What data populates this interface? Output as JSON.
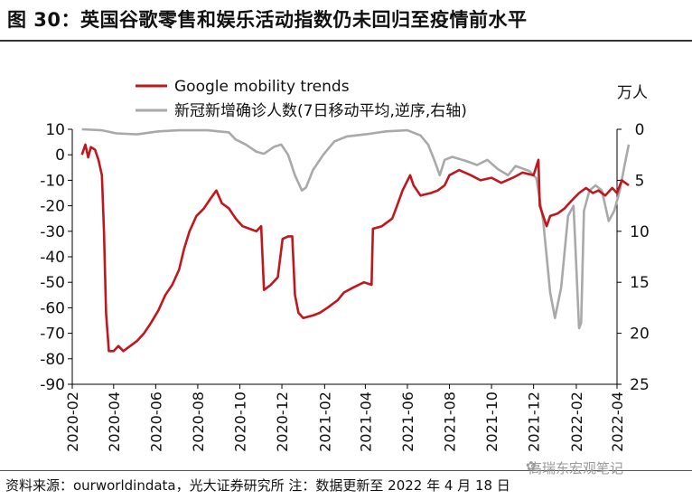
{
  "title": "图 30：英国谷歌零售和娱乐活动指数仍未回归至疫情前水平",
  "source": "资料来源：ourworldindata，光大证券研究所  注：数据更新至 2022 年 4 月 18 日",
  "watermark": "高瑞东宏观笔记",
  "colors": {
    "google": "#c0161c",
    "cases": "#a9a9a9",
    "axis": "#000000"
  },
  "chart_data": {
    "type": "line",
    "title": "",
    "x_tick_labels": [
      "2020-02",
      "2020-04",
      "2020-06",
      "2020-08",
      "2020-10",
      "2020-12",
      "2021-02",
      "2021-04",
      "2021-06",
      "2021-08",
      "2021-10",
      "2021-12",
      "2022-02",
      "2022-04"
    ],
    "y_left": {
      "ylim": [
        -90,
        10
      ],
      "ticks": [
        10,
        0,
        -10,
        -20,
        -30,
        -40,
        -50,
        -60,
        -70,
        -80,
        -90
      ]
    },
    "y_right": {
      "label": "万人",
      "ylim": [
        0,
        25
      ],
      "inverted": true,
      "ticks": [
        0,
        5,
        10,
        15,
        20,
        25
      ]
    },
    "legend_position": "top-center",
    "series": [
      {
        "name": "Google mobility trends",
        "axis": "left",
        "color": "#c0161c",
        "points": [
          [
            "2020-02-15",
            0
          ],
          [
            "2020-02-20",
            4
          ],
          [
            "2020-02-24",
            -1
          ],
          [
            "2020-02-28",
            3
          ],
          [
            "2020-03-05",
            2
          ],
          [
            "2020-03-10",
            -2
          ],
          [
            "2020-03-15",
            -8
          ],
          [
            "2020-03-18",
            -30
          ],
          [
            "2020-03-21",
            -62
          ],
          [
            "2020-03-25",
            -77
          ],
          [
            "2020-04-01",
            -77
          ],
          [
            "2020-04-08",
            -75
          ],
          [
            "2020-04-15",
            -77
          ],
          [
            "2020-04-25",
            -75
          ],
          [
            "2020-05-05",
            -73
          ],
          [
            "2020-05-15",
            -70
          ],
          [
            "2020-05-25",
            -66
          ],
          [
            "2020-06-05",
            -61
          ],
          [
            "2020-06-15",
            -55
          ],
          [
            "2020-06-25",
            -51
          ],
          [
            "2020-07-05",
            -45
          ],
          [
            "2020-07-12",
            -37
          ],
          [
            "2020-07-20",
            -30
          ],
          [
            "2020-07-30",
            -24
          ],
          [
            "2020-08-10",
            -21
          ],
          [
            "2020-08-20",
            -17
          ],
          [
            "2020-08-28",
            -14
          ],
          [
            "2020-09-05",
            -19
          ],
          [
            "2020-09-15",
            -21
          ],
          [
            "2020-09-25",
            -25
          ],
          [
            "2020-10-05",
            -28
          ],
          [
            "2020-10-15",
            -29
          ],
          [
            "2020-10-25",
            -30
          ],
          [
            "2020-11-01",
            -28
          ],
          [
            "2020-11-05",
            -53
          ],
          [
            "2020-11-15",
            -51
          ],
          [
            "2020-11-25",
            -48
          ],
          [
            "2020-12-02",
            -33
          ],
          [
            "2020-12-10",
            -32
          ],
          [
            "2020-12-16",
            -32
          ],
          [
            "2020-12-20",
            -55
          ],
          [
            "2020-12-25",
            -62
          ],
          [
            "2021-01-01",
            -64
          ],
          [
            "2021-01-15",
            -63
          ],
          [
            "2021-01-25",
            -62
          ],
          [
            "2021-02-05",
            -60
          ],
          [
            "2021-02-20",
            -57
          ],
          [
            "2021-03-01",
            -54
          ],
          [
            "2021-03-15",
            -52
          ],
          [
            "2021-03-30",
            -50
          ],
          [
            "2021-04-10",
            -51
          ],
          [
            "2021-04-12",
            -29
          ],
          [
            "2021-04-25",
            -28
          ],
          [
            "2021-05-10",
            -25
          ],
          [
            "2021-05-17",
            -20
          ],
          [
            "2021-05-25",
            -14
          ],
          [
            "2021-06-05",
            -8
          ],
          [
            "2021-06-10",
            -12
          ],
          [
            "2021-06-20",
            -16
          ],
          [
            "2021-07-05",
            -15
          ],
          [
            "2021-07-15",
            -14
          ],
          [
            "2021-07-25",
            -12
          ],
          [
            "2021-08-01",
            -8
          ],
          [
            "2021-08-15",
            -6
          ],
          [
            "2021-09-01",
            -8
          ],
          [
            "2021-09-15",
            -10
          ],
          [
            "2021-10-01",
            -9
          ],
          [
            "2021-10-15",
            -11
          ],
          [
            "2021-11-01",
            -9
          ],
          [
            "2021-11-15",
            -7
          ],
          [
            "2021-12-01",
            -8
          ],
          [
            "2021-12-08",
            -2
          ],
          [
            "2021-12-10",
            -20
          ],
          [
            "2021-12-20",
            -28
          ],
          [
            "2021-12-25",
            -24
          ],
          [
            "2022-01-05",
            -23
          ],
          [
            "2022-01-15",
            -21
          ],
          [
            "2022-01-25",
            -18
          ],
          [
            "2022-02-05",
            -15
          ],
          [
            "2022-02-15",
            -13
          ],
          [
            "2022-02-25",
            -15
          ],
          [
            "2022-03-05",
            -14
          ],
          [
            "2022-03-15",
            -16
          ],
          [
            "2022-03-25",
            -13
          ],
          [
            "2022-04-01",
            -15
          ],
          [
            "2022-04-08",
            -10
          ],
          [
            "2022-04-18",
            -12
          ]
        ]
      },
      {
        "name": "新冠新增确诊人数(7日移动平均,逆序,右轴)",
        "axis": "right",
        "color": "#a9a9a9",
        "points": [
          [
            "2020-02-15",
            0
          ],
          [
            "2020-03-15",
            0.1
          ],
          [
            "2020-04-05",
            0.4
          ],
          [
            "2020-05-05",
            0.5
          ],
          [
            "2020-06-05",
            0.2
          ],
          [
            "2020-07-05",
            0.1
          ],
          [
            "2020-08-15",
            0.1
          ],
          [
            "2020-09-15",
            0.3
          ],
          [
            "2020-09-25",
            1.0
          ],
          [
            "2020-10-10",
            1.5
          ],
          [
            "2020-10-25",
            2.2
          ],
          [
            "2020-11-05",
            2.4
          ],
          [
            "2020-11-20",
            1.7
          ],
          [
            "2020-11-30",
            1.5
          ],
          [
            "2020-12-10",
            2.5
          ],
          [
            "2020-12-20",
            4.5
          ],
          [
            "2020-12-30",
            6.0
          ],
          [
            "2021-01-05",
            5.7
          ],
          [
            "2021-01-15",
            4.0
          ],
          [
            "2021-01-30",
            2.5
          ],
          [
            "2021-02-15",
            1.2
          ],
          [
            "2021-03-05",
            0.7
          ],
          [
            "2021-04-01",
            0.5
          ],
          [
            "2021-05-01",
            0.2
          ],
          [
            "2021-06-01",
            0.1
          ],
          [
            "2021-06-20",
            0.6
          ],
          [
            "2021-07-01",
            1.5
          ],
          [
            "2021-07-10",
            3.0
          ],
          [
            "2021-07-18",
            4.5
          ],
          [
            "2021-07-25",
            3.0
          ],
          [
            "2021-08-05",
            2.7
          ],
          [
            "2021-08-25",
            3.1
          ],
          [
            "2021-09-10",
            3.5
          ],
          [
            "2021-09-25",
            3.0
          ],
          [
            "2021-10-10",
            3.9
          ],
          [
            "2021-10-25",
            4.5
          ],
          [
            "2021-11-05",
            3.6
          ],
          [
            "2021-11-25",
            4.1
          ],
          [
            "2021-12-05",
            4.8
          ],
          [
            "2021-12-15",
            9.0
          ],
          [
            "2021-12-25",
            16.0
          ],
          [
            "2022-01-01",
            18.5
          ],
          [
            "2022-01-10",
            15.5
          ],
          [
            "2022-01-20",
            8.5
          ],
          [
            "2022-01-28",
            7.5
          ],
          [
            "2022-02-05",
            19.5
          ],
          [
            "2022-02-08",
            19.0
          ],
          [
            "2022-02-12",
            8.0
          ],
          [
            "2022-02-20",
            6.0
          ],
          [
            "2022-03-01",
            5.5
          ],
          [
            "2022-03-10",
            6.0
          ],
          [
            "2022-03-20",
            9.0
          ],
          [
            "2022-03-28",
            8.0
          ],
          [
            "2022-04-05",
            6.0
          ],
          [
            "2022-04-12",
            3.5
          ],
          [
            "2022-04-18",
            1.5
          ]
        ]
      }
    ]
  }
}
